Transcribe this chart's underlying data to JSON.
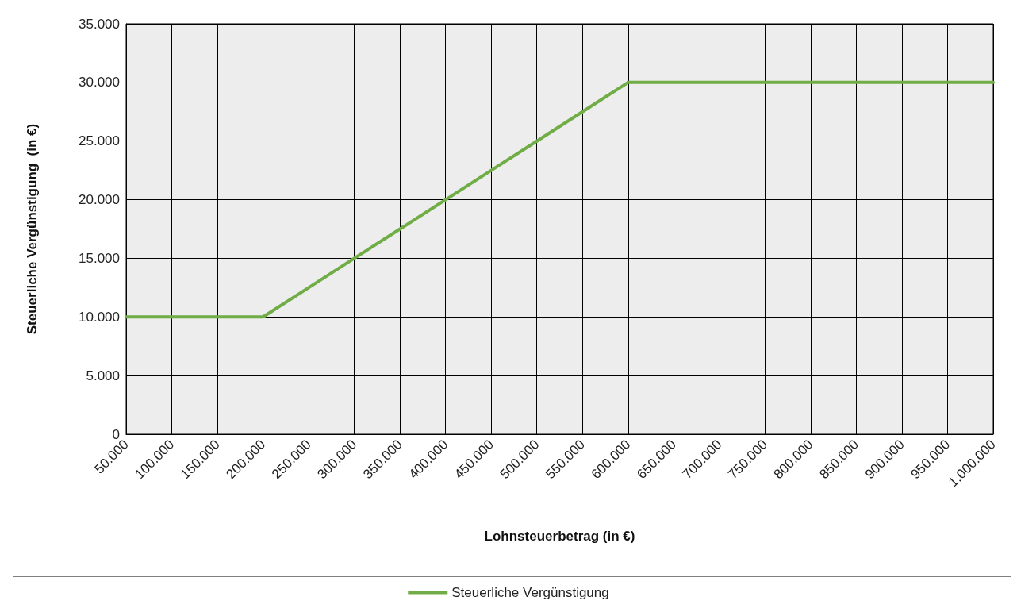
{
  "chart_data": {
    "type": "line",
    "xlabel": "Lohnsteuerbetrag (in €)",
    "ylabel": "Steuerliche Vergünstigung  (in €)",
    "categories": [
      "50.000",
      "100.000",
      "150.000",
      "200.000",
      "250.000",
      "300.000",
      "350.000",
      "400.000",
      "450.000",
      "500.000",
      "550.000",
      "600.000",
      "650.000",
      "700.000",
      "750.000",
      "800.000",
      "850.000",
      "900.000",
      "950.000",
      "1.000.000"
    ],
    "series": [
      {
        "name": "Steuerliche Vergünstigung",
        "color": "#70ad47",
        "values": [
          10000,
          10000,
          10000,
          10000,
          12500,
          15000,
          17500,
          20000,
          22500,
          25000,
          27500,
          30000,
          30000,
          30000,
          30000,
          30000,
          30000,
          30000,
          30000,
          30000
        ]
      }
    ],
    "ylim": [
      0,
      35000
    ],
    "yticks": [
      0,
      {
        "value": 5000,
        "label": "5.000"
      },
      {
        "value": 10000,
        "label": "10.000"
      },
      {
        "value": 15000,
        "label": "15.000"
      },
      {
        "value": 20000,
        "label": "20.000"
      },
      {
        "value": 25000,
        "label": "25.000"
      },
      {
        "value": 30000,
        "label": "30.000"
      },
      {
        "value": 35000,
        "label": "35.000"
      }
    ],
    "grid": true,
    "legend": "bottom",
    "marker": "none",
    "line_style": "solid"
  }
}
